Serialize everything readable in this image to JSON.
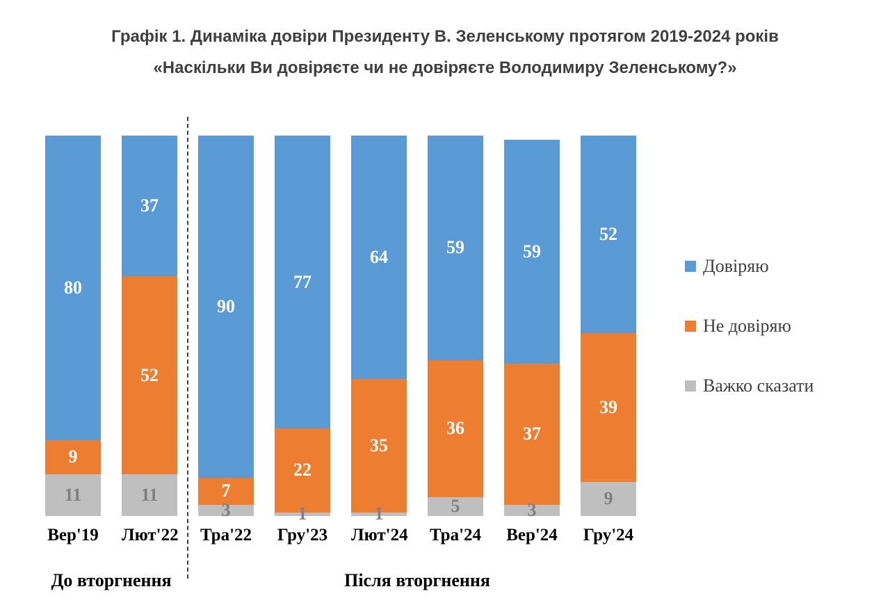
{
  "chart_data": {
    "type": "bar",
    "stacked": true,
    "percent_stacked": true,
    "title": "Графік 1. Динаміка довіри Президенту В. Зеленському протягом 2019-2024 років",
    "subtitle": "«Наскільки Ви довіряєте чи не довіряєте Володимиру Зеленському?»",
    "categories": [
      "Вер'19",
      "Лют'22",
      "Тра'22",
      "Гру'23",
      "Лют'24",
      "Тра'24",
      "Вер'24",
      "Гру'24"
    ],
    "series": [
      {
        "name": "Довіряю",
        "color": "#5B9BD5",
        "label_color": "#FFFFFF",
        "values": [
          80,
          37,
          90,
          77,
          64,
          59,
          59,
          52
        ]
      },
      {
        "name": "Не довіряю",
        "color": "#ED7D31",
        "label_color": "#FFFFFF",
        "values": [
          9,
          52,
          7,
          22,
          35,
          36,
          37,
          39
        ]
      },
      {
        "name": "Важко сказати",
        "color": "#BFBFBF",
        "label_color": "#7F7F7F",
        "values": [
          11,
          11,
          3,
          1,
          1,
          5,
          3,
          9
        ]
      }
    ],
    "xlabel": "",
    "ylabel": "",
    "ylim": [
      0,
      100
    ],
    "grid": false,
    "legend_position": "right",
    "annotations": {
      "group_before": "До вторгнення",
      "group_after": "Після вторгнення",
      "separator_after_category_index": 1
    }
  }
}
